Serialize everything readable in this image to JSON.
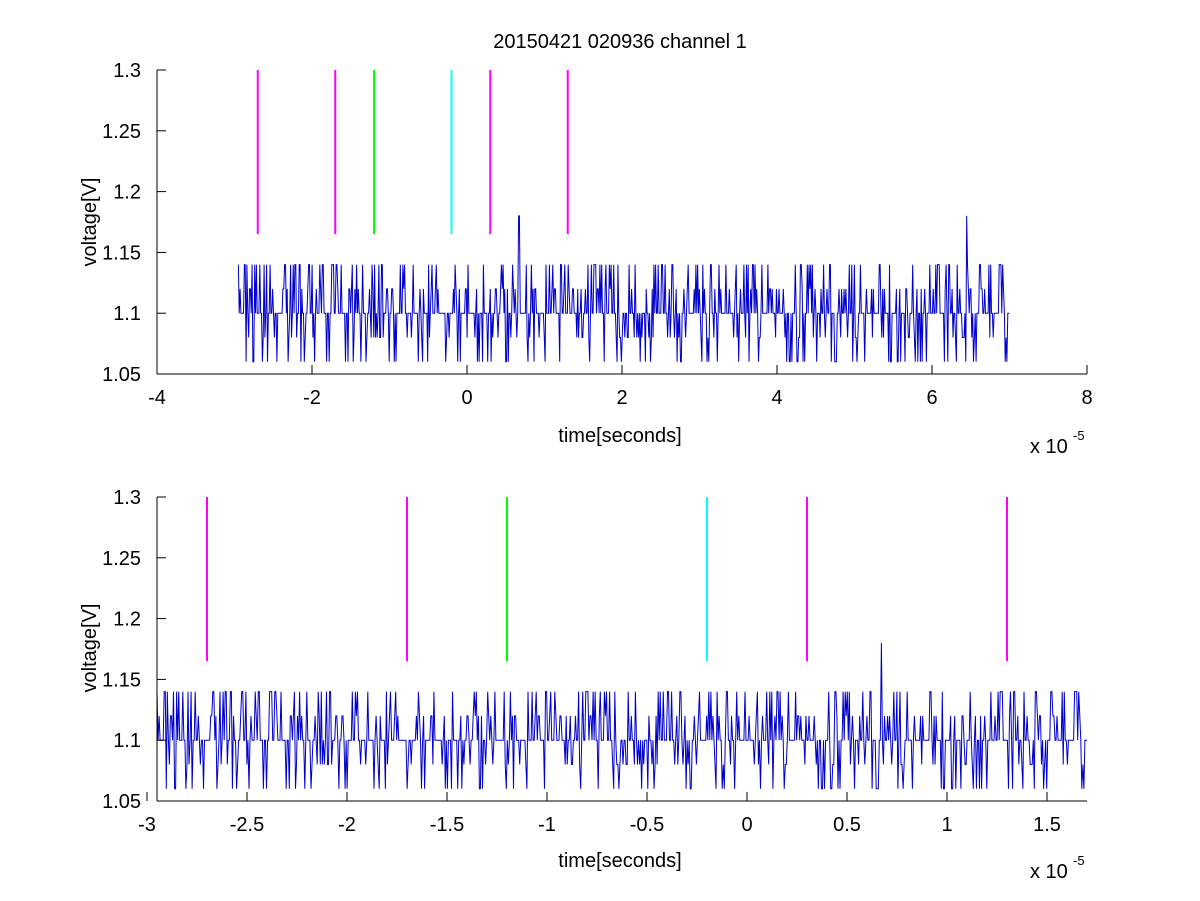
{
  "figure": {
    "title": "20150421 020936 channel 1"
  },
  "chart_data": [
    {
      "type": "line",
      "title": "20150421 020936 channel 1",
      "xlabel": "time[seconds]",
      "ylabel": "voltage[V]",
      "x_exponent_label": "x 10",
      "x_exponent": "-5",
      "xlim": [
        -4,
        8
      ],
      "ylim": [
        1.05,
        1.3
      ],
      "xticks": [
        -4,
        -2,
        0,
        2,
        4,
        6,
        8
      ],
      "xtick_labels": [
        "-4",
        "-2",
        "0",
        "2",
        "4",
        "6",
        "8"
      ],
      "yticks": [
        1.05,
        1.1,
        1.15,
        1.2,
        1.25,
        1.3
      ],
      "ytick_labels": [
        "1.05",
        "1.1",
        "1.15",
        "1.2",
        "1.25",
        "1.3"
      ],
      "grid": false,
      "signal": {
        "color": "#0000cc",
        "x_range": [
          -2.95,
          7.0
        ],
        "levels": [
          1.06,
          1.08,
          1.1,
          1.12,
          1.14
        ],
        "spikes": [
          {
            "x": 0.67,
            "y": 1.18
          },
          {
            "x": 6.45,
            "y": 1.18
          }
        ]
      },
      "markers": [
        {
          "x": -2.7,
          "y0": 1.165,
          "y1": 1.3,
          "color": "#ff00ff"
        },
        {
          "x": -1.7,
          "y0": 1.165,
          "y1": 1.3,
          "color": "#ff00ff"
        },
        {
          "x": -1.2,
          "y0": 1.165,
          "y1": 1.3,
          "color": "#00ff00"
        },
        {
          "x": -0.2,
          "y0": 1.165,
          "y1": 1.3,
          "color": "#00ffff"
        },
        {
          "x": 0.3,
          "y0": 1.165,
          "y1": 1.3,
          "color": "#ff00ff"
        },
        {
          "x": 1.3,
          "y0": 1.165,
          "y1": 1.3,
          "color": "#ff00ff"
        }
      ]
    },
    {
      "type": "line",
      "title": "",
      "xlabel": "time[seconds]",
      "ylabel": "voltage[V]",
      "x_exponent_label": "x 10",
      "x_exponent": "-5",
      "xlim": [
        -2.95,
        1.7
      ],
      "ylim": [
        1.05,
        1.3
      ],
      "xticks": [
        -3,
        -2.5,
        -2,
        -1.5,
        -1,
        -0.5,
        0,
        0.5,
        1,
        1.5
      ],
      "xtick_labels": [
        "-3",
        "-2.5",
        "-2",
        "-1.5",
        "-1",
        "-0.5",
        "0",
        "0.5",
        "1",
        "1.5"
      ],
      "yticks": [
        1.05,
        1.1,
        1.15,
        1.2,
        1.25,
        1.3
      ],
      "ytick_labels": [
        "1.05",
        "1.1",
        "1.15",
        "1.2",
        "1.25",
        "1.3"
      ],
      "grid": false,
      "signal": {
        "color": "#0000cc",
        "x_range": [
          -2.95,
          1.7
        ],
        "levels": [
          1.06,
          1.08,
          1.1,
          1.12,
          1.14
        ],
        "spikes": [
          {
            "x": 0.67,
            "y": 1.18
          }
        ]
      },
      "markers": [
        {
          "x": -2.7,
          "y0": 1.165,
          "y1": 1.3,
          "color": "#ff00ff"
        },
        {
          "x": -1.7,
          "y0": 1.165,
          "y1": 1.3,
          "color": "#ff00ff"
        },
        {
          "x": -1.2,
          "y0": 1.165,
          "y1": 1.3,
          "color": "#00ff00"
        },
        {
          "x": -0.2,
          "y0": 1.165,
          "y1": 1.3,
          "color": "#00ffff"
        },
        {
          "x": 0.3,
          "y0": 1.165,
          "y1": 1.3,
          "color": "#ff00ff"
        },
        {
          "x": 1.3,
          "y0": 1.165,
          "y1": 1.3,
          "color": "#ff00ff"
        }
      ]
    }
  ]
}
